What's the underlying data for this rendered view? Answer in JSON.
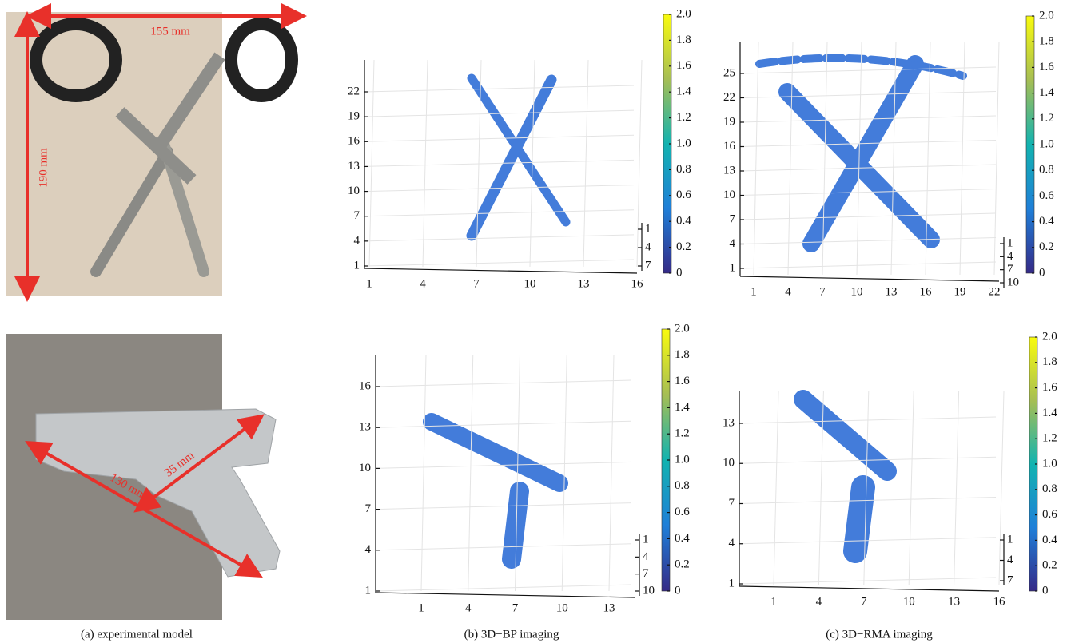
{
  "photos": {
    "scissors": {
      "width_label": "155 mm",
      "height_label": "190 mm"
    },
    "gun": {
      "short_label": "35 mm",
      "long_label": "130 mm"
    }
  },
  "plots": [
    {
      "yticks": [
        "1",
        "4",
        "7",
        "10",
        "13",
        "16",
        "19",
        "22"
      ],
      "xticks": [
        "1",
        "4",
        "7",
        "10",
        "13",
        "16"
      ],
      "zticks": [
        "1",
        "4",
        "7"
      ],
      "colorbar_ticks": [
        "0",
        "0.2",
        "0.4",
        "0.6",
        "0.8",
        "1.0",
        "1.2",
        "1.4",
        "1.6",
        "1.8",
        "2.0"
      ]
    },
    {
      "yticks": [
        "1",
        "4",
        "7",
        "10",
        "13",
        "16",
        "19",
        "22",
        "25"
      ],
      "xticks": [
        "1",
        "4",
        "7",
        "10",
        "13",
        "16",
        "19",
        "22"
      ],
      "zticks": [
        "1",
        "4",
        "7",
        "10"
      ],
      "colorbar_ticks": [
        "0",
        "0.2",
        "0.4",
        "0.6",
        "0.8",
        "1.0",
        "1.2",
        "1.4",
        "1.6",
        "1.8",
        "2.0"
      ]
    },
    {
      "yticks": [
        "1",
        "4",
        "7",
        "10",
        "13",
        "16"
      ],
      "xticks": [
        "1",
        "4",
        "7",
        "10",
        "13"
      ],
      "zticks": [
        "1",
        "4",
        "7",
        "10"
      ],
      "colorbar_ticks": [
        "0",
        "0.2",
        "0.4",
        "0.6",
        "0.8",
        "1.0",
        "1.2",
        "1.4",
        "1.6",
        "1.8",
        "2.0"
      ]
    },
    {
      "yticks": [
        "1",
        "4",
        "7",
        "10",
        "13"
      ],
      "xticks": [
        "1",
        "4",
        "7",
        "10",
        "13",
        "16"
      ],
      "zticks": [
        "1",
        "4",
        "7"
      ],
      "colorbar_ticks": [
        "0",
        "0.2",
        "0.4",
        "0.6",
        "0.8",
        "1.0",
        "1.2",
        "1.4",
        "1.6",
        "1.8",
        "2.0"
      ]
    }
  ],
  "captions": [
    "(a) experimental model",
    "(b) 3D−BP imaging",
    "(c) 3D−RMA imaging"
  ]
}
